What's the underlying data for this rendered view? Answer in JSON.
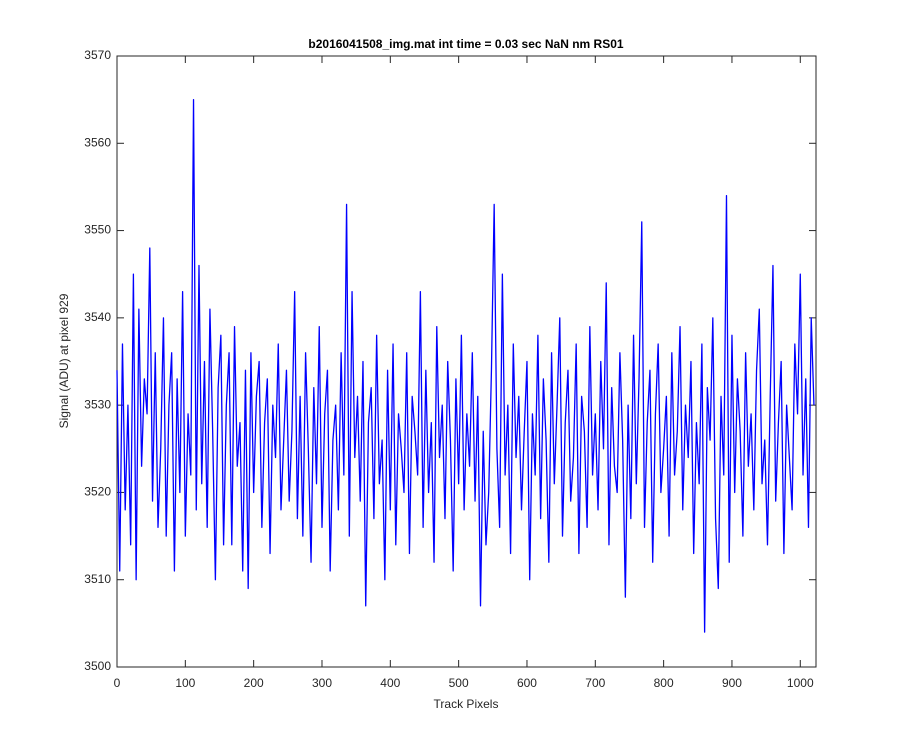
{
  "chart_data": {
    "type": "line",
    "title": "b2016041508_img.mat int time = 0.03 sec  NaN nm RS01",
    "x_label": "Track Pixels",
    "y_label": "Signal (ADU) at pixel 929",
    "color": "#0000ff",
    "xlim": [
      0,
      1023
    ],
    "ylim": [
      3500,
      3570
    ],
    "xticks": [
      0,
      100,
      200,
      300,
      400,
      500,
      600,
      700,
      800,
      900,
      1000
    ],
    "yticks": [
      3500,
      3510,
      3520,
      3530,
      3540,
      3550,
      3560,
      3570
    ],
    "x": [
      0,
      4,
      8,
      12,
      16,
      20,
      24,
      28,
      32,
      36,
      40,
      44,
      48,
      52,
      56,
      60,
      64,
      68,
      72,
      76,
      80,
      84,
      88,
      92,
      96,
      100,
      104,
      108,
      112,
      116,
      120,
      124,
      128,
      132,
      136,
      140,
      144,
      148,
      152,
      156,
      160,
      164,
      168,
      172,
      176,
      180,
      184,
      188,
      192,
      196,
      200,
      204,
      208,
      212,
      216,
      220,
      224,
      228,
      232,
      236,
      240,
      244,
      248,
      252,
      256,
      260,
      264,
      268,
      272,
      276,
      280,
      284,
      288,
      292,
      296,
      300,
      304,
      308,
      312,
      316,
      320,
      324,
      328,
      332,
      336,
      340,
      344,
      348,
      352,
      356,
      360,
      364,
      368,
      372,
      376,
      380,
      384,
      388,
      392,
      396,
      400,
      404,
      408,
      412,
      416,
      420,
      424,
      428,
      432,
      436,
      440,
      444,
      448,
      452,
      456,
      460,
      464,
      468,
      472,
      476,
      480,
      484,
      488,
      492,
      496,
      500,
      504,
      508,
      512,
      516,
      520,
      524,
      528,
      532,
      536,
      540,
      544,
      548,
      552,
      556,
      560,
      564,
      568,
      572,
      576,
      580,
      584,
      588,
      592,
      596,
      600,
      604,
      608,
      612,
      616,
      620,
      624,
      628,
      632,
      636,
      640,
      644,
      648,
      652,
      656,
      660,
      664,
      668,
      672,
      676,
      680,
      684,
      688,
      692,
      696,
      700,
      704,
      708,
      712,
      716,
      720,
      724,
      728,
      732,
      736,
      740,
      744,
      748,
      752,
      756,
      760,
      764,
      768,
      772,
      776,
      780,
      784,
      788,
      792,
      796,
      800,
      804,
      808,
      812,
      816,
      820,
      824,
      828,
      832,
      836,
      840,
      844,
      848,
      852,
      856,
      860,
      864,
      868,
      872,
      876,
      880,
      884,
      888,
      892,
      896,
      900,
      904,
      908,
      912,
      916,
      920,
      924,
      928,
      932,
      936,
      940,
      944,
      948,
      952,
      956,
      960,
      964,
      968,
      972,
      976,
      980,
      984,
      988,
      992,
      996,
      1000,
      1004,
      1008,
      1012,
      1016,
      1020
    ],
    "values": [
      3534,
      3511,
      3537,
      3518,
      3530,
      3514,
      3545,
      3510,
      3541,
      3523,
      3533,
      3529,
      3548,
      3519,
      3536,
      3516,
      3525,
      3540,
      3515,
      3530,
      3536,
      3511,
      3533,
      3520,
      3543,
      3515,
      3529,
      3522,
      3565,
      3518,
      3546,
      3521,
      3535,
      3516,
      3541,
      3527,
      3510,
      3532,
      3538,
      3514,
      3530,
      3536,
      3514,
      3539,
      3523,
      3528,
      3511,
      3534,
      3509,
      3536,
      3520,
      3531,
      3535,
      3516,
      3528,
      3533,
      3513,
      3530,
      3524,
      3537,
      3518,
      3526,
      3534,
      3519,
      3527,
      3543,
      3517,
      3531,
      3515,
      3536,
      3525,
      3512,
      3532,
      3521,
      3539,
      3516,
      3529,
      3534,
      3511,
      3526,
      3530,
      3518,
      3536,
      3522,
      3553,
      3515,
      3543,
      3524,
      3531,
      3519,
      3535,
      3507,
      3528,
      3532,
      3517,
      3538,
      3521,
      3526,
      3510,
      3534,
      3518,
      3537,
      3514,
      3529,
      3525,
      3520,
      3536,
      3513,
      3531,
      3527,
      3522,
      3543,
      3516,
      3534,
      3520,
      3528,
      3512,
      3539,
      3524,
      3530,
      3517,
      3535,
      3526,
      3511,
      3533,
      3521,
      3538,
      3518,
      3529,
      3523,
      3536,
      3519,
      3531,
      3507,
      3527,
      3514,
      3520,
      3534,
      3553,
      3525,
      3516,
      3545,
      3522,
      3530,
      3513,
      3537,
      3524,
      3531,
      3518,
      3527,
      3535,
      3510,
      3529,
      3522,
      3538,
      3517,
      3533,
      3526,
      3512,
      3536,
      3521,
      3530,
      3540,
      3515,
      3528,
      3534,
      3519,
      3524,
      3537,
      3513,
      3531,
      3527,
      3516,
      3539,
      3522,
      3529,
      3518,
      3535,
      3525,
      3544,
      3514,
      3532,
      3523,
      3520,
      3536,
      3526,
      3508,
      3530,
      3517,
      3538,
      3521,
      3533,
      3551,
      3516,
      3528,
      3534,
      3512,
      3529,
      3537,
      3520,
      3525,
      3531,
      3515,
      3536,
      3522,
      3527,
      3539,
      3518,
      3530,
      3524,
      3535,
      3513,
      3528,
      3521,
      3537,
      3504,
      3532,
      3526,
      3540,
      3517,
      3509,
      3531,
      3522,
      3554,
      3512,
      3538,
      3520,
      3533,
      3527,
      3515,
      3536,
      3523,
      3529,
      3518,
      3534,
      3541,
      3521,
      3526,
      3514,
      3531,
      3546,
      3519,
      3528,
      3535,
      3513,
      3530,
      3524,
      3518,
      3537,
      3529,
      3545,
      3522,
      3533,
      3516,
      3540,
      3530
    ]
  }
}
